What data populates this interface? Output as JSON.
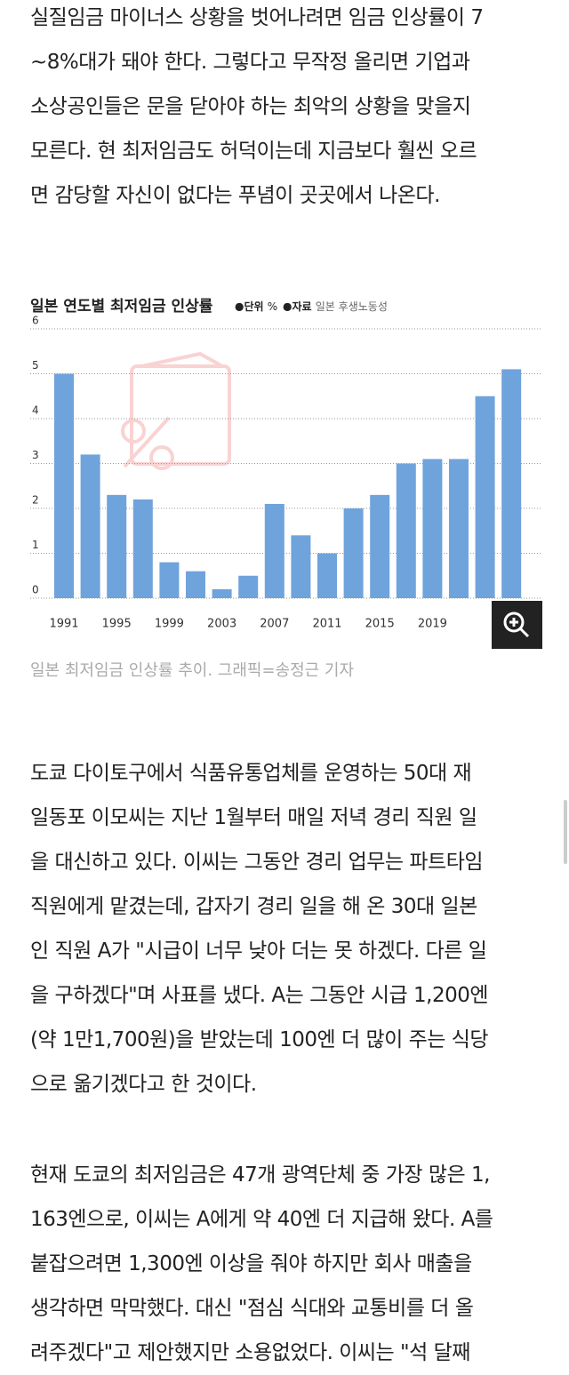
{
  "article": {
    "paragraphs": [
      [
        "실질임금 마이너스 상황을 벗어나려면 임금 인상률이 7",
        "~8%대가 돼야 한다. 그렇다고 무작정 올리면 기업과",
        "소상공인들은 문을 닫아야 하는 최악의 상황을 맞을지",
        "모른다. 현 최저임금도 허덕이는데 지금보다 훨씬 오르",
        "면 감당할 자신이 없다는 푸념이 곳곳에서 나온다."
      ],
      [
        "도쿄 다이토구에서 식품유통업체를 운영하는 50대 재",
        "일동포 이모씨는 지난 1월부터 매일 저녁 경리 직원 일",
        "을 대신하고 있다. 이씨는 그동안 경리 업무는 파트타임",
        "직원에게 맡겼는데, 갑자기 경리 일을 해 온 30대 일본",
        "인 직원 A가 \"시급이 너무 낮아 더는 못 하겠다. 다른 일",
        "을 구하겠다\"며 사표를 냈다. A는 그동안 시급 1,200엔",
        "(약 1만1,700원)을 받았는데 100엔 더 많이 주는 식당",
        "으로 옮기겠다고 한 것이다."
      ],
      [
        "현재 도쿄의 최저임금은 47개 광역단체 중 가장 많은 1,",
        "163엔으로, 이씨는 A에게 약 40엔 더 지급해 왔다. A를",
        "붙잡으려면 1,300엔 이상을 줘야 하지만 회사 매출을",
        "생각하면 막막했다. 대신 \"점심 식대와 교통비를 더 올",
        "려주겠다\"고 제안했지만 소용없었다. 이씨는 \"석 달째"
      ]
    ],
    "caption": "일본 최저임금 인상률 추이. 그래픽=송정근 기자"
  },
  "chart_data": {
    "type": "bar",
    "title": "일본 연도별 최저임금 인상률",
    "unit_label": "단위",
    "unit": "%",
    "source_label": "자료",
    "source": "일본 후생노동성",
    "categories": [
      "1991",
      null,
      "1995",
      null,
      "1999",
      null,
      "2003",
      null,
      "2007",
      null,
      "2011",
      null,
      "2015",
      null,
      "2019",
      null,
      null,
      null
    ],
    "values": [
      5.0,
      3.2,
      2.3,
      2.2,
      0.8,
      0.6,
      0.2,
      0.5,
      2.1,
      1.4,
      1.0,
      2.0,
      2.3,
      3.0,
      3.1,
      3.1,
      4.5,
      5.1
    ],
    "color": "#6fa3dc",
    "ylim": [
      0,
      6
    ],
    "yticks": [
      0,
      1,
      2,
      3,
      4,
      5,
      6
    ],
    "grid": true
  }
}
